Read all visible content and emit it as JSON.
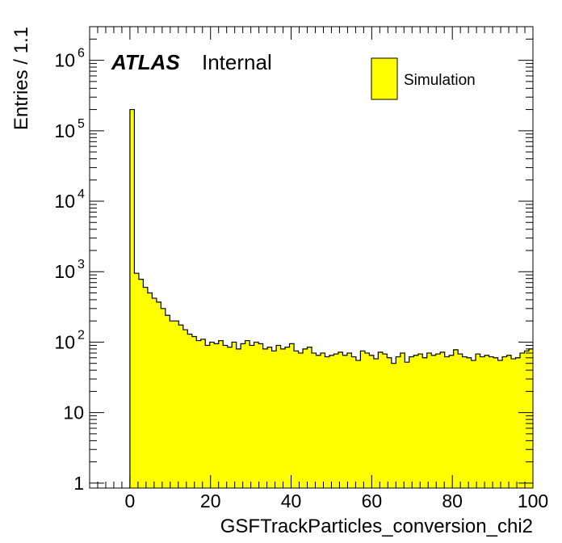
{
  "chart_data": {
    "type": "histogram",
    "title": "",
    "xlabel": "GSFTrackParticles_conversion_chi2",
    "ylabel": "Entries / 1.1",
    "xlim": [
      -10,
      100
    ],
    "ylim": [
      0.85,
      3000000
    ],
    "y_scale": "log",
    "x_ticks": [
      0,
      20,
      40,
      60,
      80,
      100
    ],
    "x_tick_labels": [
      "0",
      "20",
      "40",
      "60",
      "80",
      "100"
    ],
    "y_tick_labels": [
      {
        "base": "1",
        "exp": "",
        "value": 1
      },
      {
        "base": "10",
        "exp": "",
        "value": 10
      },
      {
        "base": "10",
        "exp": "2",
        "value": 100
      },
      {
        "base": "10",
        "exp": "3",
        "value": 1000
      },
      {
        "base": "10",
        "exp": "4",
        "value": 10000
      },
      {
        "base": "10",
        "exp": "5",
        "value": 100000
      },
      {
        "base": "10",
        "exp": "6",
        "value": 1000000
      }
    ],
    "grid": false,
    "bin_width": 1.1,
    "bin_start": 0,
    "legend": {
      "position": "top-right",
      "entries": [
        {
          "label": "Simulation",
          "color": "#ffff00"
        }
      ]
    },
    "series": [
      {
        "name": "Simulation",
        "fill": "#ffff00",
        "edge": "#000000",
        "values": [
          200000,
          950,
          780,
          600,
          500,
          420,
          370,
          300,
          240,
          200,
          200,
          175,
          150,
          130,
          120,
          105,
          110,
          90,
          100,
          95,
          105,
          90,
          85,
          100,
          80,
          95,
          105,
          90,
          100,
          95,
          80,
          85,
          75,
          90,
          80,
          85,
          95,
          75,
          70,
          80,
          85,
          70,
          65,
          70,
          62,
          65,
          68,
          72,
          65,
          70,
          62,
          55,
          75,
          70,
          65,
          58,
          72,
          68,
          60,
          50,
          62,
          70,
          52,
          62,
          65,
          68,
          60,
          70,
          65,
          68,
          72,
          62,
          65,
          78,
          68,
          62,
          60,
          55,
          68,
          62,
          65,
          62,
          60,
          55,
          62,
          65,
          58,
          60,
          70,
          75,
          80,
          62,
          60,
          58,
          65,
          60,
          62,
          65,
          62,
          60,
          58,
          60,
          62,
          70,
          58,
          62,
          60,
          58,
          55,
          60,
          65,
          60,
          58,
          75,
          62,
          68,
          60,
          58,
          62,
          52,
          70,
          62,
          55,
          58,
          62,
          68,
          62,
          60,
          55,
          65,
          62,
          58,
          72,
          60,
          62,
          50,
          58,
          62,
          62,
          70,
          62,
          58,
          60,
          55,
          65,
          60,
          58,
          62,
          60,
          65,
          55,
          62,
          58,
          60,
          55,
          62,
          60,
          65,
          60,
          58,
          62,
          60,
          58,
          60,
          62,
          65,
          60,
          58,
          55,
          62,
          60,
          58,
          62,
          60,
          62,
          58,
          60,
          55,
          62,
          60,
          58,
          62,
          65,
          60,
          58,
          60,
          62,
          60,
          58,
          55,
          62,
          60,
          58,
          62,
          60
        ]
      }
    ]
  },
  "labels": {
    "atlas": "ATLAS",
    "internal": "Internal"
  }
}
